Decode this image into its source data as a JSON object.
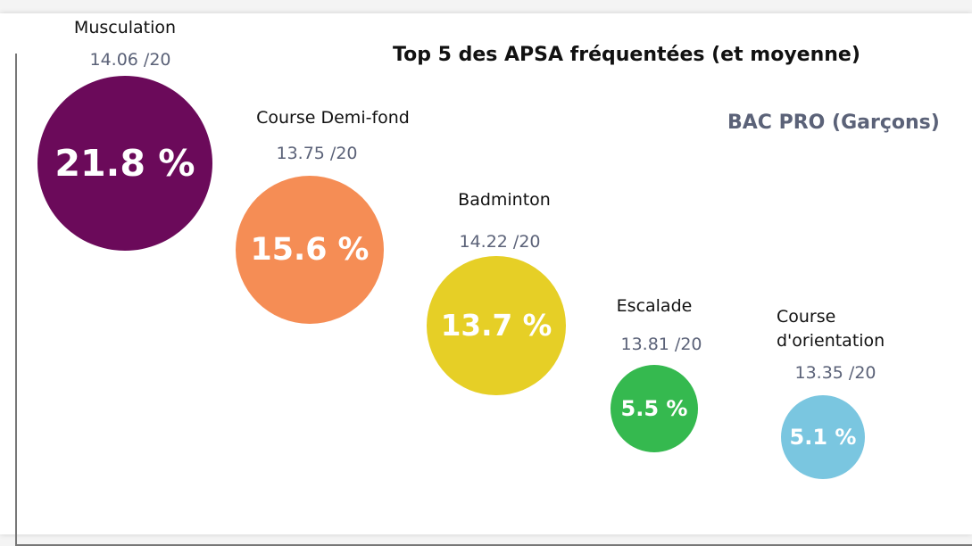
{
  "chart_data": {
    "type": "bubble",
    "title": "Top 5 des APSA fréquentées (et moyenne)",
    "subtitle": "BAC PRO (Garçons)",
    "categories": [
      "Musculation",
      "Course Demi-fond",
      "Badminton",
      "Escalade",
      "Course d'orientation"
    ],
    "values": [
      21.8,
      15.6,
      13.7,
      5.5,
      5.1
    ],
    "value_labels": [
      "21.8 %",
      "15.6 %",
      "13.7 %",
      "5.5 %",
      "5.1 %"
    ],
    "average_labels": [
      "14.06 /20",
      "13.75 /20",
      "14.22 /20",
      "13.81 /20",
      "13.35 /20"
    ],
    "colors": [
      "#6b0a5a",
      "#f58d55",
      "#e6cf26",
      "#35b94f",
      "#7ac6e0"
    ]
  }
}
